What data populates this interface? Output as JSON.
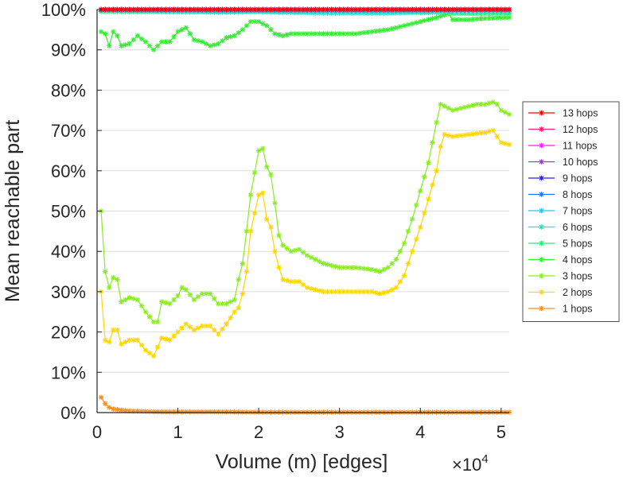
{
  "chart_data": {
    "type": "line",
    "title": "",
    "xlabel": "Volume (m) [edges]",
    "ylabel": "Mean reachable part",
    "x_multiplier": "×10",
    "x_multiplier_exp": "4",
    "xlim": [
      0,
      51000
    ],
    "ylim": [
      0,
      100
    ],
    "x_ticks": [
      0,
      10000,
      20000,
      30000,
      40000,
      50000
    ],
    "x_tick_labels": [
      "0",
      "1",
      "2",
      "3",
      "4",
      "5"
    ],
    "y_ticks": [
      0,
      10,
      20,
      30,
      40,
      50,
      60,
      70,
      80,
      90,
      100
    ],
    "y_tick_labels": [
      "0%",
      "10%",
      "20%",
      "30%",
      "40%",
      "50%",
      "60%",
      "70%",
      "80%",
      "90%",
      "100%"
    ],
    "grid": "horizontal",
    "legend_position": "right",
    "series": [
      {
        "name": "13 hops",
        "color": "#ff0000",
        "x": [
          500,
          51000
        ],
        "y": [
          100,
          100
        ]
      },
      {
        "name": "12 hops",
        "color": "#ff1a75",
        "x": [
          500,
          51000
        ],
        "y": [
          100,
          100
        ]
      },
      {
        "name": "11 hops",
        "color": "#ee22ee",
        "x": [
          500,
          51000
        ],
        "y": [
          100,
          100
        ]
      },
      {
        "name": "10 hops",
        "color": "#9933ff",
        "x": [
          500,
          51000
        ],
        "y": [
          100,
          100
        ]
      },
      {
        "name": "9 hops",
        "color": "#2222ee",
        "x": [
          500,
          51000
        ],
        "y": [
          100,
          100
        ]
      },
      {
        "name": "8 hops",
        "color": "#2b6cff",
        "x": [
          500,
          51000
        ],
        "y": [
          100,
          100
        ]
      },
      {
        "name": "7 hops",
        "color": "#1ac8ee",
        "x": [
          500,
          5000,
          10000,
          15000,
          20000,
          25000,
          30000,
          35000,
          40000,
          45000,
          51000
        ],
        "y": [
          100,
          99.8,
          99.7,
          99.6,
          99.7,
          99.6,
          99.6,
          99.6,
          99.7,
          99.8,
          99.9
        ]
      },
      {
        "name": "6 hops",
        "color": "#22e6cc",
        "x": [
          500,
          5000,
          10000,
          15000,
          20000,
          25000,
          30000,
          35000,
          40000,
          45000,
          51000
        ],
        "y": [
          99.8,
          99.6,
          99.4,
          99.3,
          99.4,
          99.2,
          99.1,
          99.1,
          99.2,
          99.4,
          99.6
        ]
      },
      {
        "name": "5 hops",
        "color": "#22ee77",
        "x": [
          500,
          10000,
          20000,
          30000,
          40000,
          43500,
          44000,
          51000
        ],
        "y": [
          99.5,
          99.4,
          99.5,
          99.5,
          99.4,
          99.3,
          99,
          99
        ]
      },
      {
        "name": "4 hops",
        "color": "#33ee33",
        "x": [
          500,
          1000,
          1500,
          2000,
          2500,
          3000,
          4000,
          5000,
          6000,
          7000,
          8000,
          9000,
          10000,
          11000,
          12000,
          13000,
          14000,
          15000,
          16000,
          17000,
          18000,
          19000,
          20000,
          21000,
          22000,
          23000,
          24000,
          26000,
          28000,
          30000,
          32000,
          34000,
          36000,
          38000,
          40000,
          42000,
          43500,
          44000,
          46000,
          48000,
          51000
        ],
        "y": [
          94.5,
          94,
          91,
          94.5,
          93.5,
          91,
          91.5,
          93.5,
          92,
          90,
          92,
          92,
          94.5,
          95.5,
          92.5,
          92,
          91,
          91.5,
          93,
          93.5,
          95,
          97,
          97,
          96,
          94,
          93.5,
          94,
          94,
          94,
          94,
          94,
          94.5,
          95,
          96,
          97,
          98,
          99,
          97.5,
          97.5,
          97.8,
          98
        ]
      },
      {
        "name": "3 hops",
        "color": "#88ee22",
        "x": [
          500,
          1000,
          1500,
          2000,
          2500,
          3000,
          4000,
          5000,
          6000,
          7000,
          7500,
          8000,
          9000,
          10000,
          10500,
          11000,
          12000,
          13000,
          14000,
          15000,
          16000,
          17000,
          17500,
          18000,
          18500,
          19000,
          20000,
          20500,
          21000,
          21500,
          22000,
          22500,
          23000,
          24000,
          25000,
          26000,
          28000,
          30000,
          32000,
          34000,
          35000,
          36000,
          37000,
          38000,
          39000,
          40000,
          41000,
          41500,
          42000,
          42500,
          43000,
          44000,
          45000,
          46000,
          47000,
          48000,
          49000,
          49500,
          50000,
          51000
        ],
        "y": [
          50,
          35,
          31,
          33.5,
          33,
          27.5,
          28.5,
          28,
          25,
          22.5,
          22.5,
          27.5,
          27,
          29,
          31,
          30.5,
          28,
          29.5,
          29.5,
          27,
          27,
          28,
          33,
          37,
          45,
          54,
          65,
          65.5,
          61,
          59,
          52,
          44,
          41.5,
          40,
          40.5,
          39,
          37,
          36,
          36,
          35.5,
          35,
          36,
          38,
          42,
          48,
          55,
          62,
          67,
          72,
          76.5,
          76,
          75,
          75.5,
          76,
          76.5,
          76.5,
          77,
          76.5,
          75,
          74
        ]
      },
      {
        "name": "2 hops",
        "color": "#ffd700",
        "x": [
          500,
          1000,
          1500,
          2000,
          2500,
          3000,
          4000,
          5000,
          6000,
          7000,
          8000,
          9000,
          10000,
          11000,
          12000,
          13000,
          14000,
          15000,
          16000,
          17000,
          17500,
          18000,
          18500,
          19000,
          20000,
          20500,
          21000,
          21500,
          22000,
          22500,
          23000,
          24000,
          25000,
          26000,
          28000,
          30000,
          32000,
          34000,
          35000,
          36000,
          37000,
          38000,
          39000,
          40000,
          41000,
          42000,
          42500,
          43000,
          44000,
          46000,
          48000,
          49000,
          50000,
          51000
        ],
        "y": [
          30,
          18,
          17.5,
          20.5,
          20.5,
          17,
          18,
          18,
          15.5,
          14,
          18.5,
          18,
          20,
          22,
          20.5,
          21.5,
          21.5,
          19.5,
          22,
          25,
          26,
          29.5,
          35,
          45,
          54,
          54.5,
          48,
          46,
          40,
          36,
          33,
          32.5,
          32.5,
          31,
          30,
          30,
          30,
          30,
          29.5,
          30,
          31,
          34,
          40,
          46,
          53,
          60,
          66,
          69,
          68.5,
          69,
          69.5,
          70,
          67,
          66.5
        ]
      },
      {
        "name": "1 hops",
        "color": "#ff8c1a",
        "x": [
          500,
          1000,
          1500,
          2000,
          3000,
          4000,
          6000,
          8000,
          10000,
          15000,
          20000,
          30000,
          40000,
          51000
        ],
        "y": [
          3.8,
          2.2,
          1.3,
          0.9,
          0.6,
          0.4,
          0.3,
          0.2,
          0.2,
          0.2,
          0.1,
          0.1,
          0.1,
          0.1
        ]
      }
    ]
  }
}
